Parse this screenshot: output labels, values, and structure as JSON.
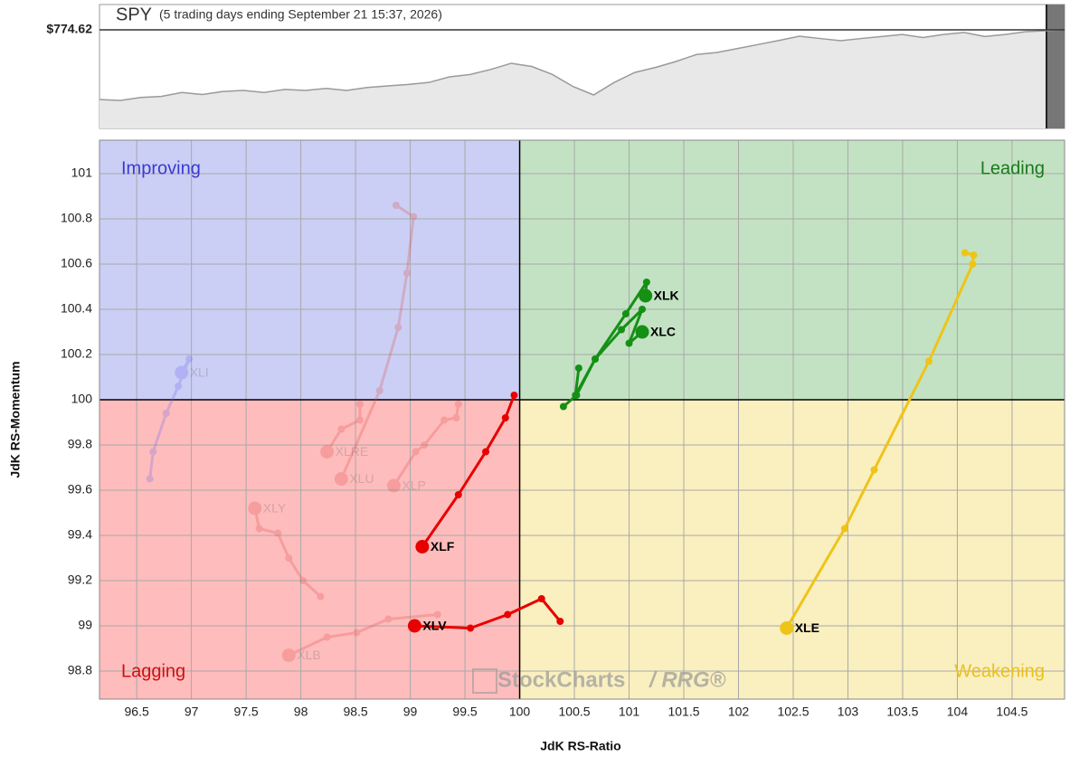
{
  "chart_data": [
    {
      "type": "area",
      "title": "SPY",
      "subtitle": "(5 trading days ending September 21 15:37, 2026)",
      "last": {
        "value": 774.62,
        "label": "$774.62"
      },
      "ylim": [
        676,
        800
      ],
      "color": "#9a9a9a",
      "values": [
        705,
        704,
        707,
        708,
        712,
        710,
        713,
        714,
        712,
        715,
        714,
        716,
        714,
        717,
        718.5,
        720,
        722,
        727.6,
        730,
        735,
        741.2,
        738,
        730,
        718,
        709.5,
        722,
        732,
        737,
        743,
        750,
        752,
        756,
        760,
        764,
        768.3,
        766,
        763.8,
        766,
        768,
        770,
        767,
        770,
        772,
        768,
        770,
        772.8,
        774.62
      ]
    },
    {
      "type": "rrg",
      "xlabel": "JdK RS-Ratio",
      "ylabel": "JdK RS-Momentum",
      "xlim": [
        96.16,
        104.98
      ],
      "ylim": [
        98.676,
        101.148
      ],
      "xticks": [
        96.5,
        97,
        97.5,
        98,
        98.5,
        99,
        99.5,
        100,
        100.5,
        101,
        101.5,
        102,
        102.5,
        103,
        103.5,
        104,
        104.5
      ],
      "yticks": [
        98.8,
        99,
        99.2,
        99.4,
        99.6,
        99.8,
        100,
        100.2,
        100.4,
        100.6,
        100.8,
        101
      ],
      "grid": true,
      "center": [
        100,
        100
      ],
      "quadrants": {
        "improving": "Improving",
        "leading": "Leading",
        "weakening": "Weakening",
        "lagging": "Lagging"
      },
      "watermark": [
        "StockCharts",
        "/ RRG®"
      ],
      "series": [
        {
          "name": "XLI",
          "color": "#6b6bf0",
          "faded": true,
          "x": [
            96.62,
            96.65,
            96.77,
            96.88,
            96.98,
            96.91
          ],
          "y": [
            99.65,
            99.77,
            99.94,
            100.06,
            100.18,
            100.12
          ]
        },
        {
          "name": "XLRE",
          "color": "#e05050",
          "faded": true,
          "x": [
            98.54,
            98.54,
            98.37,
            98.24
          ],
          "y": [
            99.98,
            99.91,
            99.87,
            99.77
          ]
        },
        {
          "name": "XLU",
          "color": "#e05050",
          "faded": true,
          "x": [
            98.87,
            99.03,
            98.97,
            98.89,
            98.72,
            98.37
          ],
          "y": [
            100.86,
            100.81,
            100.56,
            100.32,
            100.04,
            99.65
          ]
        },
        {
          "name": "XLP",
          "color": "#e05050",
          "faded": true,
          "x": [
            99.44,
            99.42,
            99.31,
            99.13,
            99.05,
            98.85
          ],
          "y": [
            99.98,
            99.92,
            99.91,
            99.8,
            99.77,
            99.62
          ]
        },
        {
          "name": "XLY",
          "color": "#e05050",
          "faded": true,
          "x": [
            98.18,
            98.02,
            97.89,
            97.79,
            97.62,
            97.58
          ],
          "y": [
            99.13,
            99.2,
            99.3,
            99.41,
            99.43,
            99.52
          ]
        },
        {
          "name": "XLB",
          "color": "#e05050",
          "faded": true,
          "x": [
            99.25,
            98.8,
            98.51,
            98.24,
            97.89
          ],
          "y": [
            99.05,
            99.03,
            98.97,
            98.95,
            98.87
          ]
        },
        {
          "name": "XLK",
          "color": "#159015",
          "faded": false,
          "x": [
            100.4,
            100.52,
            100.69,
            100.97,
            101.16,
            101.15
          ],
          "y": [
            99.97,
            100.02,
            100.18,
            100.38,
            100.52,
            100.46
          ]
        },
        {
          "name": "XLC",
          "color": "#159015",
          "faded": false,
          "x": [
            100.54,
            100.51,
            100.69,
            100.93,
            101.12,
            101.0,
            101.12
          ],
          "y": [
            100.14,
            100.02,
            100.18,
            100.31,
            100.4,
            100.25,
            100.3
          ]
        },
        {
          "name": "XLE",
          "color": "#eec418",
          "faded": false,
          "x": [
            104.07,
            104.15,
            104.14,
            103.74,
            103.24,
            102.97,
            102.44
          ],
          "y": [
            100.65,
            100.64,
            100.6,
            100.17,
            99.69,
            99.43,
            98.99
          ]
        },
        {
          "name": "XLF",
          "color": "#e80000",
          "faded": false,
          "x": [
            99.95,
            99.87,
            99.69,
            99.44,
            99.11
          ],
          "y": [
            100.02,
            99.92,
            99.77,
            99.58,
            99.35
          ]
        },
        {
          "name": "XLV",
          "color": "#e80000",
          "faded": false,
          "x": [
            100.37,
            100.2,
            99.89,
            99.55,
            99.04
          ],
          "y": [
            99.02,
            99.12,
            99.05,
            98.99,
            99.0
          ]
        }
      ]
    }
  ]
}
